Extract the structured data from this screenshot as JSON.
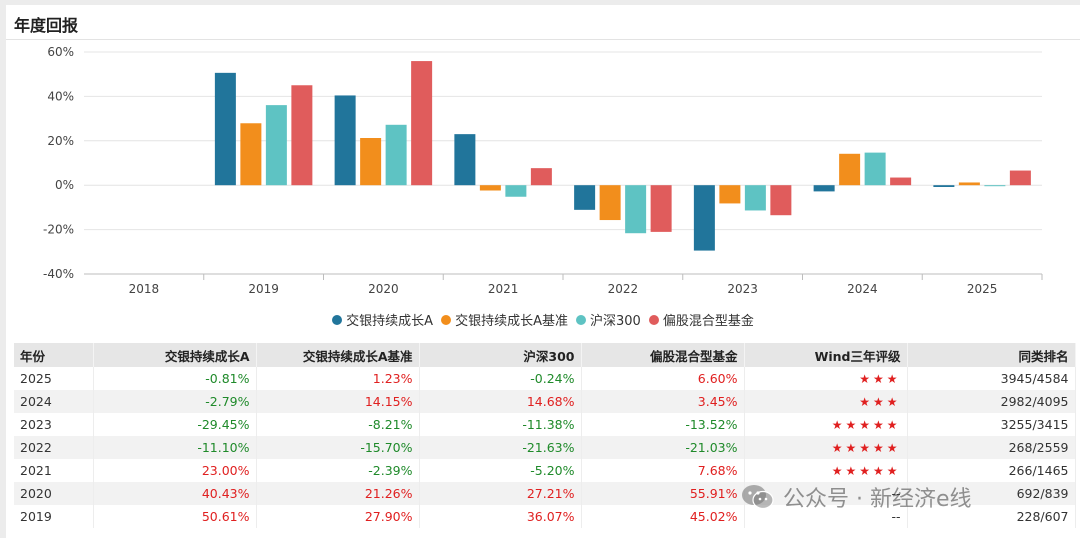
{
  "header": {
    "title": "年度回报"
  },
  "chart_data": {
    "type": "bar",
    "categories": [
      "2018",
      "2019",
      "2020",
      "2021",
      "2022",
      "2023",
      "2024",
      "2025"
    ],
    "ylim": [
      -40,
      60
    ],
    "yticks": [
      60,
      40,
      20,
      0,
      -20,
      -40
    ],
    "ytick_labels": [
      "60%",
      "40%",
      "20%",
      "0%",
      "-20%",
      "-40%"
    ],
    "grid": true,
    "legend_position": "bottom",
    "series": [
      {
        "name": "交银持续成长A",
        "color": "#21759b",
        "values": [
          null,
          50.61,
          40.43,
          23.0,
          -11.1,
          -29.45,
          -2.79,
          -0.81
        ]
      },
      {
        "name": "交银持续成长A基准",
        "color": "#f28e1c",
        "values": [
          null,
          27.9,
          21.26,
          -2.39,
          -15.7,
          -8.21,
          14.15,
          1.23
        ]
      },
      {
        "name": "沪深300",
        "color": "#5ec3c3",
        "values": [
          null,
          36.07,
          27.21,
          -5.2,
          -21.63,
          -11.38,
          14.68,
          -0.24
        ]
      },
      {
        "name": "偏股混合型基金",
        "color": "#e05c5c",
        "values": [
          null,
          45.02,
          55.91,
          7.68,
          -21.03,
          -13.52,
          3.45,
          6.6
        ]
      }
    ]
  },
  "table": {
    "headers": [
      "年份",
      "交银持续成长A",
      "交银持续成长A基准",
      "沪深300",
      "偏股混合型基金",
      "Wind三年评级",
      "同类排名"
    ],
    "rows": [
      {
        "year": "2025",
        "fund": "-0.81%",
        "bench": "1.23%",
        "hs300": "-0.24%",
        "peer": "6.60%",
        "stars": "★★★",
        "rank": "3945/4584"
      },
      {
        "year": "2024",
        "fund": "-2.79%",
        "bench": "14.15%",
        "hs300": "14.68%",
        "peer": "3.45%",
        "stars": "★★★",
        "rank": "2982/4095"
      },
      {
        "year": "2023",
        "fund": "-29.45%",
        "bench": "-8.21%",
        "hs300": "-11.38%",
        "peer": "-13.52%",
        "stars": "★★★★★",
        "rank": "3255/3415"
      },
      {
        "year": "2022",
        "fund": "-11.10%",
        "bench": "-15.70%",
        "hs300": "-21.63%",
        "peer": "-21.03%",
        "stars": "★★★★★",
        "rank": "268/2559"
      },
      {
        "year": "2021",
        "fund": "23.00%",
        "bench": "-2.39%",
        "hs300": "-5.20%",
        "peer": "7.68%",
        "stars": "★★★★★",
        "rank": "266/1465"
      },
      {
        "year": "2020",
        "fund": "40.43%",
        "bench": "21.26%",
        "hs300": "27.21%",
        "peer": "55.91%",
        "stars": "--",
        "rank": "692/839"
      },
      {
        "year": "2019",
        "fund": "50.61%",
        "bench": "27.90%",
        "hs300": "36.07%",
        "peer": "45.02%",
        "stars": "--",
        "rank": "228/607"
      }
    ]
  },
  "colors": {
    "positive": "#e02020",
    "negative": "#1f8a2a",
    "star": "#e02020"
  },
  "watermark": {
    "text": "公众号 · 新经济e线",
    "icon": "wechat-icon"
  }
}
